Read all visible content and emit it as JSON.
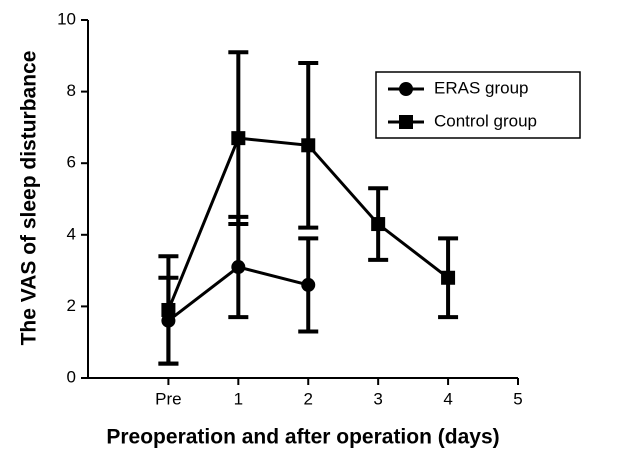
{
  "chart_data": {
    "type": "line",
    "x_label": "Preoperation and after operation (days)",
    "y_label": "The VAS of sleep disturbance",
    "x": [
      0,
      1,
      2,
      3,
      4
    ],
    "xlim": [
      -1.15,
      5
    ],
    "xticks": [
      {
        "value": 0,
        "label": "Pre"
      },
      1,
      2,
      3,
      4,
      5
    ],
    "ylim": [
      0,
      10
    ],
    "yticks": [
      0,
      2,
      4,
      6,
      8,
      10
    ],
    "legend": "upper right",
    "series": [
      {
        "name": "ERAS group",
        "color": "#000000",
        "marker": "circle",
        "values": [
          1.6,
          3.1,
          2.6,
          null,
          null
        ],
        "errors": [
          1.2,
          1.4,
          1.3,
          null,
          null
        ]
      },
      {
        "name": "Control group",
        "color": "#000000",
        "marker": "square",
        "values": [
          1.9,
          6.7,
          6.5,
          4.3,
          2.8
        ],
        "errors": [
          1.5,
          2.4,
          2.3,
          1.0,
          1.1
        ]
      }
    ]
  }
}
